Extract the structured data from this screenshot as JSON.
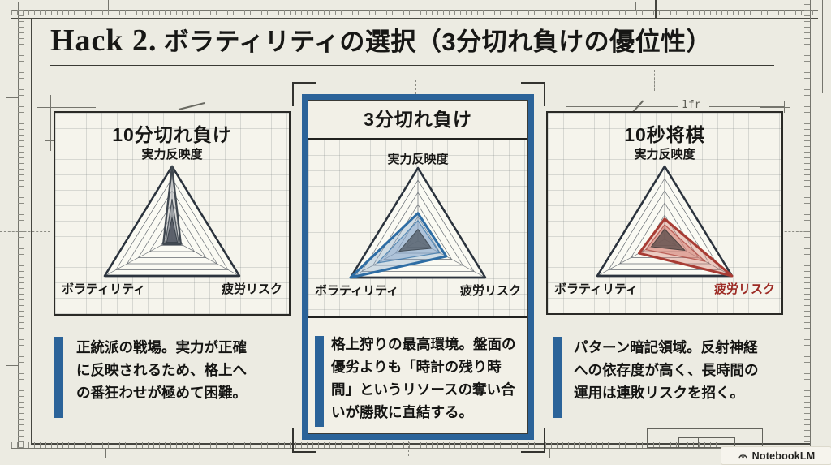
{
  "page": {
    "title_prefix": "Hack 2.",
    "title_main": "ボラティリティの選択（3分切れ負けの優位性）",
    "watermark": "NotebookLM",
    "annotation_1fr": "1fr",
    "accent_blue": "#2b6399",
    "accent_red": "#a83c34",
    "paper_color": "#ecebe2"
  },
  "panels": [
    {
      "title": "10分切れ負け",
      "highlight": false,
      "description": "正統派の戦場。実力が正確に反映されるため、格上への番狂わせが極めて困難。"
    },
    {
      "title": "3分切れ負け",
      "highlight": true,
      "description": "格上狩りの最高環境。盤面の優劣よりも「時計の残り時間」というリソースの奪い合いが勝敗に直結する。"
    },
    {
      "title": "10秒将棋",
      "highlight": false,
      "description": "パターン暗記領域。反射神経への依存度が高く、長時間の運用は連敗リスクを招く。"
    }
  ],
  "chart_data": [
    {
      "type": "radar",
      "title": "10分切れ負け",
      "axes": [
        "実力反映度",
        "ボラティリティ",
        "疲労リスク"
      ],
      "axis_colors": [
        "#1a1a18",
        "#1a1a18",
        "#1a1a18"
      ],
      "scale": [
        0,
        1
      ],
      "grid_levels": [
        0.167,
        0.333,
        0.5,
        0.667,
        0.833,
        1.0
      ],
      "series": [
        {
          "name": "outer",
          "values": [
            1.0,
            0.13,
            0.13
          ],
          "stroke": "#404850",
          "stroke_width": 2.4,
          "fill": "rgba(185,188,192,0.55)"
        },
        {
          "name": "mid",
          "values": [
            0.55,
            0.1,
            0.1
          ],
          "stroke": "#4a525a",
          "stroke_width": 1.2,
          "fill": "rgba(130,136,144,0.6)"
        },
        {
          "name": "core",
          "values": [
            0.3,
            0.08,
            0.08
          ],
          "stroke": "#3a424a",
          "stroke_width": 1.0,
          "fill": "rgba(80,86,96,0.85)"
        }
      ]
    },
    {
      "type": "radar",
      "title": "3分切れ負け",
      "axes": [
        "実力反映度",
        "ボラティリティ",
        "疲労リスク"
      ],
      "axis_colors": [
        "#1a1a18",
        "#1a1a18",
        "#1a1a18"
      ],
      "scale": [
        0,
        1
      ],
      "grid_levels": [
        0.167,
        0.333,
        0.5,
        0.667,
        0.833,
        1.0
      ],
      "series": [
        {
          "name": "outer",
          "values": [
            0.38,
            1.0,
            0.42
          ],
          "stroke": "#2e6da4",
          "stroke_width": 3.0,
          "fill": "rgba(140,170,205,0.38)"
        },
        {
          "name": "mid",
          "values": [
            0.28,
            0.6,
            0.32
          ],
          "stroke": "rgba(46,109,164,0.7)",
          "stroke_width": 1.2,
          "fill": "rgba(140,170,205,0.5)"
        },
        {
          "name": "core",
          "values": [
            0.16,
            0.28,
            0.2
          ],
          "stroke": "#45505a",
          "stroke_width": 1.0,
          "fill": "rgba(85,95,105,0.8)"
        }
      ]
    },
    {
      "type": "radar",
      "title": "10秒将棋",
      "axes": [
        "実力反映度",
        "ボラティリティ",
        "疲労リスク"
      ],
      "axis_colors": [
        "#1a1a18",
        "#1a1a18",
        "#9c2a24"
      ],
      "scale": [
        0,
        1
      ],
      "grid_levels": [
        0.167,
        0.333,
        0.5,
        0.667,
        0.833,
        1.0
      ],
      "series": [
        {
          "name": "outer",
          "values": [
            0.28,
            0.38,
            1.0
          ],
          "stroke": "#a83c34",
          "stroke_width": 3.0,
          "fill": "rgba(215,135,125,0.42)"
        },
        {
          "name": "mid",
          "values": [
            0.2,
            0.28,
            0.6
          ],
          "stroke": "rgba(168,60,52,0.7)",
          "stroke_width": 1.2,
          "fill": "rgba(215,135,125,0.52)"
        },
        {
          "name": "core",
          "values": [
            0.14,
            0.2,
            0.3
          ],
          "stroke": "#4e4442",
          "stroke_width": 1.0,
          "fill": "rgba(95,80,78,0.8)"
        }
      ]
    }
  ]
}
